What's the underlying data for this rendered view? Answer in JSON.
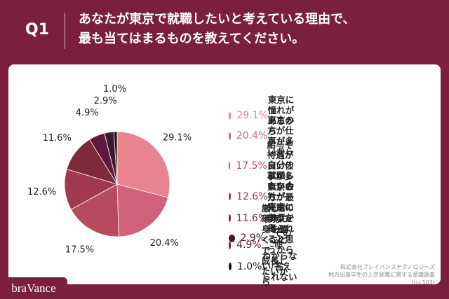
{
  "chart_data": {
    "type": "pie",
    "label": "Q1",
    "title": "あなたが東京で就職したいと考えている理由で、\n最も当てはまるものを教えてください。",
    "categories": [
      "東京に憧れがあるから",
      "東京の方が仕事が多いから",
      "給与や待遇が良い仕事が多いから",
      "自分の就職したい会社が\n東京にあるから",
      "東京の方が最先端の学びを\n得られると思うから",
      "厳しい環境に身を置くことで\n成長したいから",
      "その他",
      "わからない/答えられない"
    ],
    "values": [
      29.1,
      20.4,
      17.5,
      12.6,
      11.6,
      4.9,
      2.9,
      1.0
    ],
    "value_labels": [
      "29.1%",
      "20.4%",
      "17.5%",
      "12.6%",
      "11.6%",
      "4.9%",
      "2.9%",
      "1.0%"
    ],
    "colors": [
      "#e8848f",
      "#d0637a",
      "#b84a5e",
      "#a03a4e",
      "#7f2a3c",
      "#5e1a3a",
      "#3d1a2e",
      "#111111"
    ],
    "source": [
      "株式会社ブレイバンステクノロジーズ",
      "地方出身学生の上京就職に関する意識調査",
      "(n=103)"
    ],
    "brand": "braVance"
  }
}
